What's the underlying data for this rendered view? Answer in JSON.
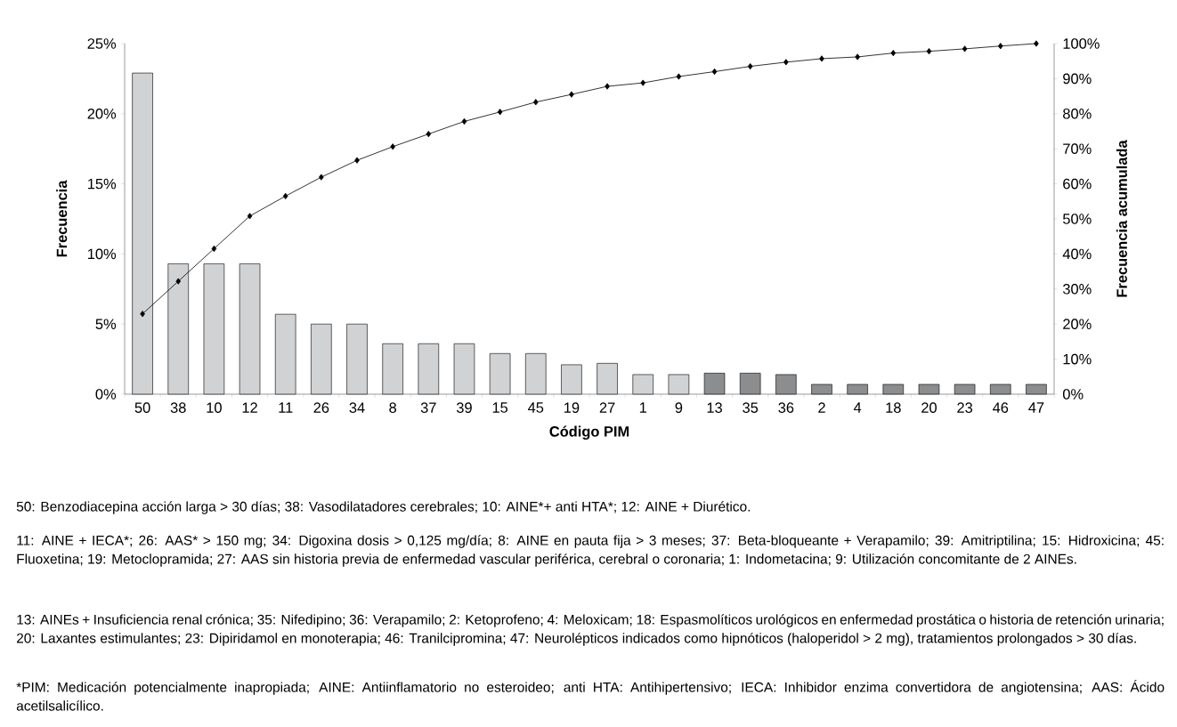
{
  "chart_data": {
    "type": "bar",
    "xlabel": "Código PIM",
    "ylabel": "Frecuencia",
    "y2label": "Frecuencia acumulada",
    "categories": [
      "50",
      "38",
      "10",
      "12",
      "11",
      "26",
      "34",
      "8",
      "37",
      "39",
      "15",
      "45",
      "19",
      "27",
      "1",
      "9",
      "13",
      "35",
      "36",
      "2",
      "4",
      "18",
      "20",
      "23",
      "46",
      "47"
    ],
    "series": [
      {
        "values": [
          22.9,
          9.3,
          9.3,
          9.3,
          5.7,
          5.0,
          5.0,
          3.6,
          3.6,
          3.6,
          2.9,
          2.9,
          2.1,
          2.2,
          1.4,
          1.4,
          1.5,
          1.5,
          1.4,
          0.7,
          0.7,
          0.7,
          0.7,
          0.7,
          0.7,
          0.7
        ],
        "colors": [
          "#d1d2d4",
          "#d1d2d4",
          "#d1d2d4",
          "#d1d2d4",
          "#d1d2d4",
          "#d1d2d4",
          "#d1d2d4",
          "#d1d2d4",
          "#d1d2d4",
          "#d1d2d4",
          "#d1d2d4",
          "#d1d2d4",
          "#d1d2d4",
          "#d1d2d4",
          "#d1d2d4",
          "#d1d2d4",
          "#8c8d8f",
          "#8c8d8f",
          "#8c8d8f",
          "#8c8d8f",
          "#8c8d8f",
          "#8c8d8f",
          "#8c8d8f",
          "#8c8d8f",
          "#8c8d8f",
          "#8c8d8f"
        ]
      },
      {
        "type": "line",
        "axis": "y2",
        "color": "#000000",
        "values": [
          22.9,
          32.2,
          41.5,
          50.8,
          56.5,
          61.9,
          66.7,
          70.6,
          74.2,
          77.8,
          80.5,
          83.3,
          85.5,
          87.8,
          88.8,
          90.6,
          92.0,
          93.5,
          94.7,
          95.7,
          96.2,
          97.3,
          97.8,
          98.5,
          99.3,
          100
        ]
      }
    ],
    "marker": "diamond",
    "ylim": [
      0,
      25
    ],
    "yticks": [
      {
        "value": 0,
        "label": "0%"
      },
      {
        "value": 5,
        "label": "5%"
      },
      {
        "value": 10,
        "label": "10%"
      },
      {
        "value": 15,
        "label": "15%"
      },
      {
        "value": 20,
        "label": "20%"
      },
      {
        "value": 25,
        "label": "25%"
      }
    ],
    "y2lim": [
      0,
      100
    ],
    "y2ticks": [
      {
        "value": 0,
        "label": "0%"
      },
      {
        "value": 10,
        "label": "10%"
      },
      {
        "value": 20,
        "label": "20%"
      },
      {
        "value": 30,
        "label": "30%"
      },
      {
        "value": 40,
        "label": "40%"
      },
      {
        "value": 50,
        "label": "50%"
      },
      {
        "value": 60,
        "label": "60%"
      },
      {
        "value": 70,
        "label": "70%"
      },
      {
        "value": 80,
        "label": "80%"
      },
      {
        "value": 90,
        "label": "90%"
      },
      {
        "value": 100,
        "label": "100%"
      }
    ],
    "annotations": [
      "50: Benzodiacepina acción larga > 30 días; 38: Vasodilatadores cerebrales; 10: AINE*+ anti HTA*; 12: AINE + Diurético.",
      "11: AINE + IECA*; 26: AAS* > 150 mg; 34: Digoxina dosis > 0,125 mg/día; 8: AINE en pauta fija > 3 meses; 37: Beta-bloqueante + Verapamilo; 39: Amitriptilina; 15: Hidroxicina; 45: Fluoxetina; 19: Metoclopramida; 27: AAS sin historia previa de enfermedad vascular periférica, cerebral o coronaria; 1: Indometacina; 9: Utilización concomitante de 2 AINEs.",
      "13: AINEs + Insuficiencia renal crónica; 35: Nifedipino; 36: Verapamilo; 2: Ketoprofeno; 4: Meloxicam; 18: Espasmolíticos urológicos en enfermedad prostática o historia de retención urinaria; 20: Laxantes estimulantes; 23: Dipiridamol en monoterapia; 46: Tranilcipromina; 47: Neurolépticos indicados como hipnóticos (haloperidol > 2 mg), tratamientos prolongados > 30 días.",
      "*PIM: Medicación potencialmente inapropiada; AINE: Antiinflamatorio no esteroideo; anti HTA: Antihipertensivo; IECA: Inhibidor enzima convertidora de angiotensina; AAS: Ácido acetilsalicílico."
    ]
  }
}
